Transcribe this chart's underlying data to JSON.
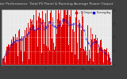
{
  "title": "Solar PV/Inverter Performance  Total PV Panel & Running Average Power Output",
  "bg_color": "#404040",
  "plot_bg_color": "#e8e8e8",
  "bar_color": "#dd0000",
  "avg_color": "#0000dd",
  "grid_color": "#ffffff",
  "grid_linestyle": "dotted",
  "num_bars": 365,
  "peak_day": 172,
  "ylim": [
    0,
    1.0
  ],
  "title_fontsize": 3.2,
  "tick_fontsize": 2.2,
  "legend_entries": [
    "-- PV Output",
    "Running Avg"
  ],
  "legend_colors": [
    "#dd0000",
    "#0000dd"
  ],
  "ylabel_right": [
    "0",
    "1k",
    "2k",
    "3k",
    "4k"
  ],
  "ylabel_right_pos": [
    0.0,
    0.25,
    0.5,
    0.75,
    1.0
  ],
  "num_seed": 7
}
